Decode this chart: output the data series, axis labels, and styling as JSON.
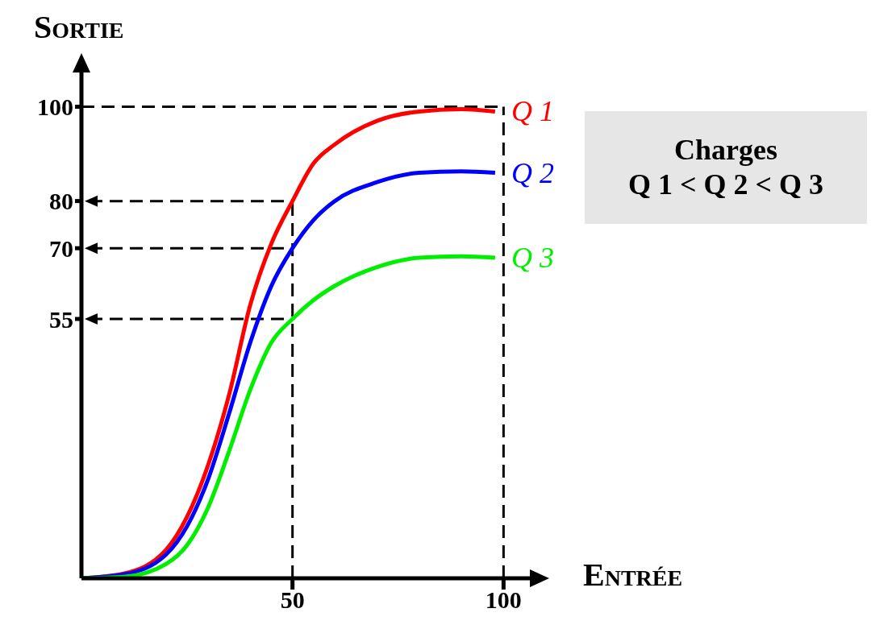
{
  "chart_data": {
    "type": "line",
    "xlabel": "Entrée",
    "ylabel": "Sortie",
    "x": [
      0,
      10,
      20,
      25,
      30,
      35,
      40,
      45,
      50,
      55,
      60,
      70,
      80,
      90,
      98
    ],
    "series": [
      {
        "name": "Q 1",
        "color": "#ff0000",
        "values": [
          0,
          1,
          6,
          13,
          24,
          39,
          58,
          71,
          80,
          88,
          92,
          97,
          99,
          99.5,
          99
        ]
      },
      {
        "name": "Q 2",
        "color": "#0000ff",
        "values": [
          0,
          0.8,
          5,
          11,
          21,
          35,
          50,
          62,
          70,
          76,
          80,
          84,
          86,
          86.3,
          86
        ]
      },
      {
        "name": "Q 3",
        "color": "#00ee00",
        "values": [
          0,
          0.3,
          3,
          7,
          15,
          27,
          40,
          50,
          55,
          59,
          62,
          66,
          68,
          68.3,
          68
        ]
      }
    ],
    "xlim": [
      0,
      107
    ],
    "ylim": [
      0,
      110
    ],
    "xticks": [
      50,
      100
    ],
    "yticks": [
      55,
      70,
      80,
      100
    ],
    "ref_lines": [
      {
        "axis": "y",
        "value": 100,
        "color": "#000000",
        "line_style": "dashed"
      },
      {
        "axis": "y",
        "value": 80,
        "color": "#000000",
        "line_style": "dashed"
      },
      {
        "axis": "y",
        "value": 70,
        "color": "#000000",
        "line_style": "dashed"
      },
      {
        "axis": "y",
        "value": 55,
        "color": "#000000",
        "line_style": "dashed"
      },
      {
        "axis": "x",
        "value": 50,
        "color": "#000000",
        "line_style": "dashed"
      },
      {
        "axis": "x",
        "value": 100,
        "color": "#000000",
        "line_style": "dashed"
      }
    ],
    "annotations": [
      "Charges\nQ 1 < Q 2 < Q 3"
    ],
    "grid": false,
    "legend": false,
    "marker": "none",
    "line_style": "solid"
  }
}
